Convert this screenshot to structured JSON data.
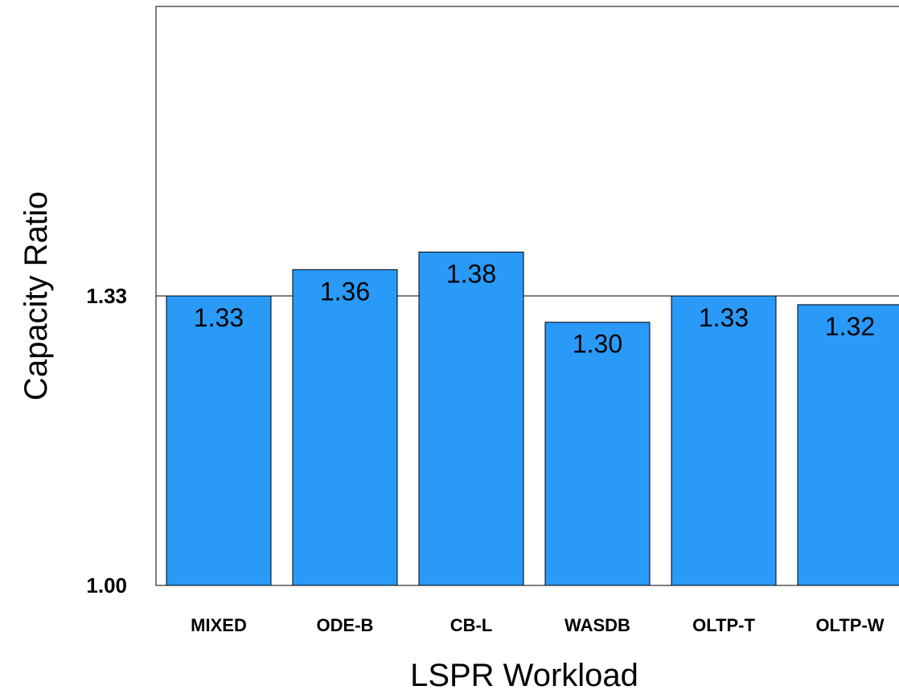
{
  "chart_data": {
    "type": "bar",
    "categories": [
      "MIXED",
      "ODE-B",
      "CB-L",
      "WASDB",
      "OLTP-T",
      "OLTP-W"
    ],
    "values": [
      1.33,
      1.36,
      1.38,
      1.3,
      1.33,
      1.32
    ],
    "data_labels": [
      "1.33",
      "1.36",
      "1.38",
      "1.30",
      "1.33",
      "1.32"
    ],
    "xlabel": "LSPR Workload",
    "ylabel": "Capacity Ratio",
    "yticks": [
      {
        "value": 1.0,
        "label": "1.00"
      },
      {
        "value": 1.33,
        "label": "1.33"
      }
    ],
    "ylim": [
      1.0,
      1.66
    ],
    "reference_line": 1.33,
    "bar_color": "#2a9af8",
    "legend": "none"
  }
}
